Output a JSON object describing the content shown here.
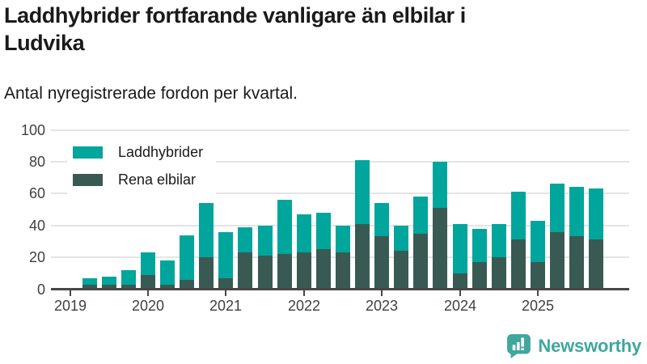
{
  "header": {
    "title_lines": [
      "Laddhybrider fortfarande vanligare än elbilar i",
      "Ludvika"
    ],
    "subtitle": "Antal nyregistrerade fordon per kvartal."
  },
  "legend": {
    "items": [
      {
        "label": "Laddhybrider",
        "color": "#00a59c"
      },
      {
        "label": "Rena elbilar",
        "color": "#395a53"
      }
    ]
  },
  "footer": {
    "brand": "Newsworthy",
    "logo_icon": "bar-chart-speech-bubble-icon",
    "logo_color": "#3fa79d"
  },
  "colors": {
    "laddhybrider": "#00a59c",
    "rena_elbilar": "#395a53",
    "axis": "#474747",
    "grid": "#e4e4e4",
    "text": "#1a1a1a",
    "tick_text": "#404040"
  },
  "chart_data": {
    "type": "bar",
    "stacked": true,
    "title": "Laddhybrider fortfarande vanligare än elbilar i Ludvika",
    "subtitle": "Antal nyregistrerade fordon per kvartal.",
    "x": [
      "2019-Q1",
      "2019-Q2",
      "2019-Q3",
      "2019-Q4",
      "2020-Q1",
      "2020-Q2",
      "2020-Q3",
      "2020-Q4",
      "2021-Q1",
      "2021-Q2",
      "2021-Q3",
      "2021-Q4",
      "2022-Q1",
      "2022-Q2",
      "2022-Q3",
      "2022-Q4",
      "2023-Q1",
      "2023-Q2",
      "2023-Q3",
      "2023-Q4",
      "2024-Q1",
      "2024-Q2",
      "2024-Q3",
      "2024-Q4",
      "2025-Q1",
      "2025-Q2",
      "2025-Q3",
      "2025-Q4"
    ],
    "series": [
      {
        "name": "Rena elbilar",
        "color": "#395a53",
        "stack_order": "bottom",
        "values": [
          0,
          3,
          3,
          3,
          9,
          3,
          6,
          20,
          7,
          23,
          21,
          22,
          23,
          25,
          23,
          41,
          33,
          24,
          35,
          51,
          10,
          17,
          20,
          31,
          17,
          36,
          33,
          31
        ]
      },
      {
        "name": "Laddhybrider",
        "color": "#00a59c",
        "stack_order": "top",
        "values": [
          0,
          4,
          5,
          9,
          14,
          15,
          28,
          34,
          29,
          16,
          19,
          34,
          24,
          23,
          17,
          40,
          21,
          16,
          23,
          29,
          31,
          21,
          21,
          30,
          26,
          30,
          31,
          32
        ]
      }
    ],
    "totals": [
      0,
      7,
      8,
      12,
      23,
      18,
      34,
      54,
      36,
      39,
      40,
      56,
      47,
      48,
      40,
      81,
      54,
      40,
      58,
      80,
      41,
      38,
      41,
      61,
      43,
      66,
      64,
      63
    ],
    "xticks": [
      "2019",
      "2020",
      "2021",
      "2022",
      "2023",
      "2024",
      "2025"
    ],
    "yticks": [
      0,
      20,
      40,
      60,
      80,
      100
    ],
    "ylim": [
      0,
      100
    ],
    "grid": "horizontal",
    "legend_position": "top-left"
  }
}
